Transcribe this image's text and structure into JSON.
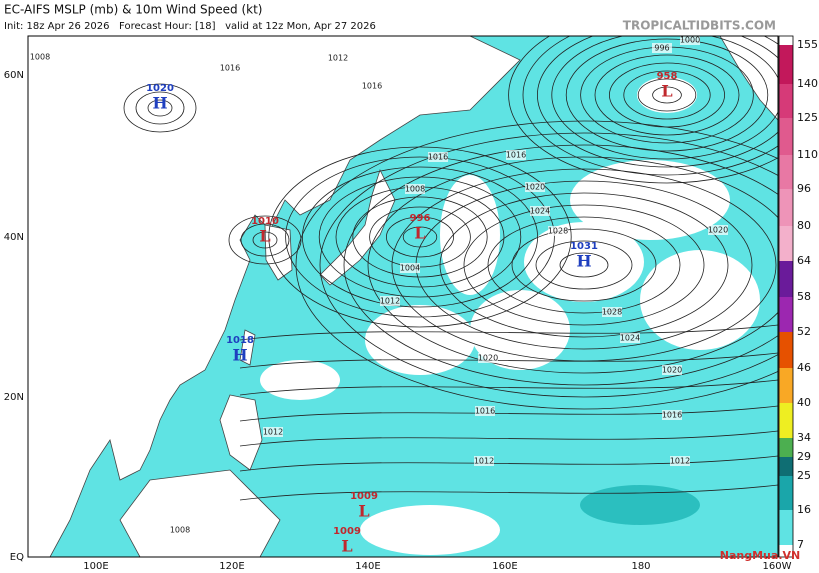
{
  "header": {
    "title": "EC-AIFS MSLP (mb) & 10m Wind Speed (kt)",
    "subtitle": "Init: 18z Apr 26 2026   Forecast Hour: [18]   valid at 12z Mon, Apr 27 2026",
    "site": "TROPICALTIDBITS.COM"
  },
  "axes": {
    "lat_labels": [
      "60N",
      "40N",
      "20N",
      "EQ"
    ],
    "lon_labels": [
      "100E",
      "120E",
      "140E",
      "160E",
      "180",
      "160W"
    ]
  },
  "colorbar": {
    "ticks": [
      155,
      140,
      125,
      110,
      96,
      80,
      64,
      58,
      52,
      46,
      40,
      34,
      29,
      25,
      16,
      7
    ],
    "colors": [
      "#c2185b",
      "#d63a78",
      "#e05a8e",
      "#e878a4",
      "#ee94b8",
      "#f3b0cb",
      "#6a1b9a",
      "#9c27b0",
      "#e65100",
      "#f9a825",
      "#eeee22",
      "#4caf50",
      "#0f6e73",
      "#1aa6aa",
      "#5fe3e3"
    ]
  },
  "centers": [
    {
      "kind": "H",
      "value": "1020"
    },
    {
      "kind": "L",
      "value": "958"
    },
    {
      "kind": "L",
      "value": "1010"
    },
    {
      "kind": "L",
      "value": "996"
    },
    {
      "kind": "H",
      "value": "1031"
    },
    {
      "kind": "H",
      "value": "1018"
    },
    {
      "kind": "L",
      "value": "1009"
    },
    {
      "kind": "L",
      "value": "1009"
    }
  ],
  "isobar_labels": [
    "1008",
    "1016",
    "1012",
    "1016",
    "1016",
    "1016",
    "1020",
    "1024",
    "1028",
    "1028",
    "1024",
    "1020",
    "1016",
    "1012",
    "1016",
    "1012",
    "1020",
    "1012",
    "1004",
    "1008",
    "1020",
    "1012",
    "1008",
    "1000",
    "996"
  ],
  "watermark": "NangMua.VN"
}
